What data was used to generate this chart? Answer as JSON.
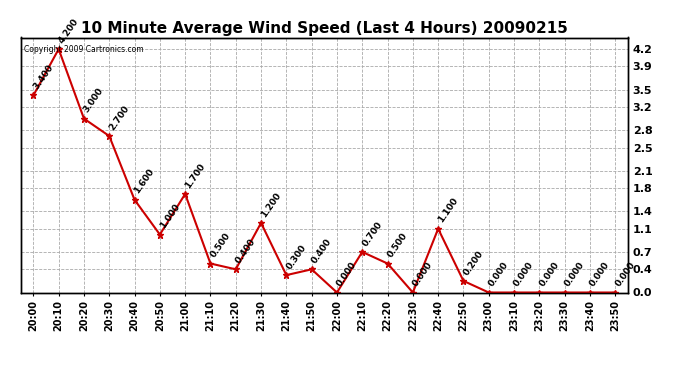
{
  "title": "10 Minute Average Wind Speed (Last 4 Hours) 20090215",
  "copyright": "Copyright 2009 Cartronics.com",
  "times": [
    "20:00",
    "20:10",
    "20:20",
    "20:30",
    "20:40",
    "20:50",
    "21:00",
    "21:10",
    "21:20",
    "21:30",
    "21:40",
    "21:50",
    "22:00",
    "22:10",
    "22:20",
    "22:30",
    "22:40",
    "22:50",
    "23:00",
    "23:10",
    "23:20",
    "23:30",
    "23:40",
    "23:50"
  ],
  "values": [
    3.4,
    4.2,
    3.0,
    2.7,
    1.6,
    1.0,
    1.7,
    0.5,
    0.4,
    1.2,
    0.3,
    0.4,
    0.0,
    0.7,
    0.5,
    0.0,
    1.1,
    0.2,
    0.0,
    0.0,
    0.0,
    0.0,
    0.0,
    0.0
  ],
  "ylim": [
    0,
    4.4
  ],
  "yticks_right": [
    0.0,
    0.4,
    0.7,
    1.1,
    1.4,
    1.8,
    2.1,
    2.5,
    2.8,
    3.2,
    3.5,
    3.9,
    4.2
  ],
  "ytick_labels_right": [
    "0.0",
    "0.4",
    "0.7",
    "1.1",
    "1.4",
    "1.8",
    "2.1",
    "2.5",
    "2.8",
    "3.2",
    "3.5",
    "3.9",
    "4.2"
  ],
  "line_color": "#cc0000",
  "marker_color": "#cc0000",
  "bg_color": "#ffffff",
  "grid_color": "#aaaaaa",
  "title_fontsize": 11,
  "tick_fontsize": 7,
  "annotation_fontsize": 6.5,
  "label_values": [
    "3.400",
    "4.200",
    "3.000",
    "2.700",
    "1.600",
    "1.000",
    "1.700",
    "0.500",
    "0.400",
    "1.200",
    "0.300",
    "0.400",
    "0.000",
    "0.700",
    "0.500",
    "0.000",
    "1.100",
    "0.200",
    "0.000",
    "0.000",
    "0.000",
    "0.000",
    "0.000",
    "0.000"
  ]
}
